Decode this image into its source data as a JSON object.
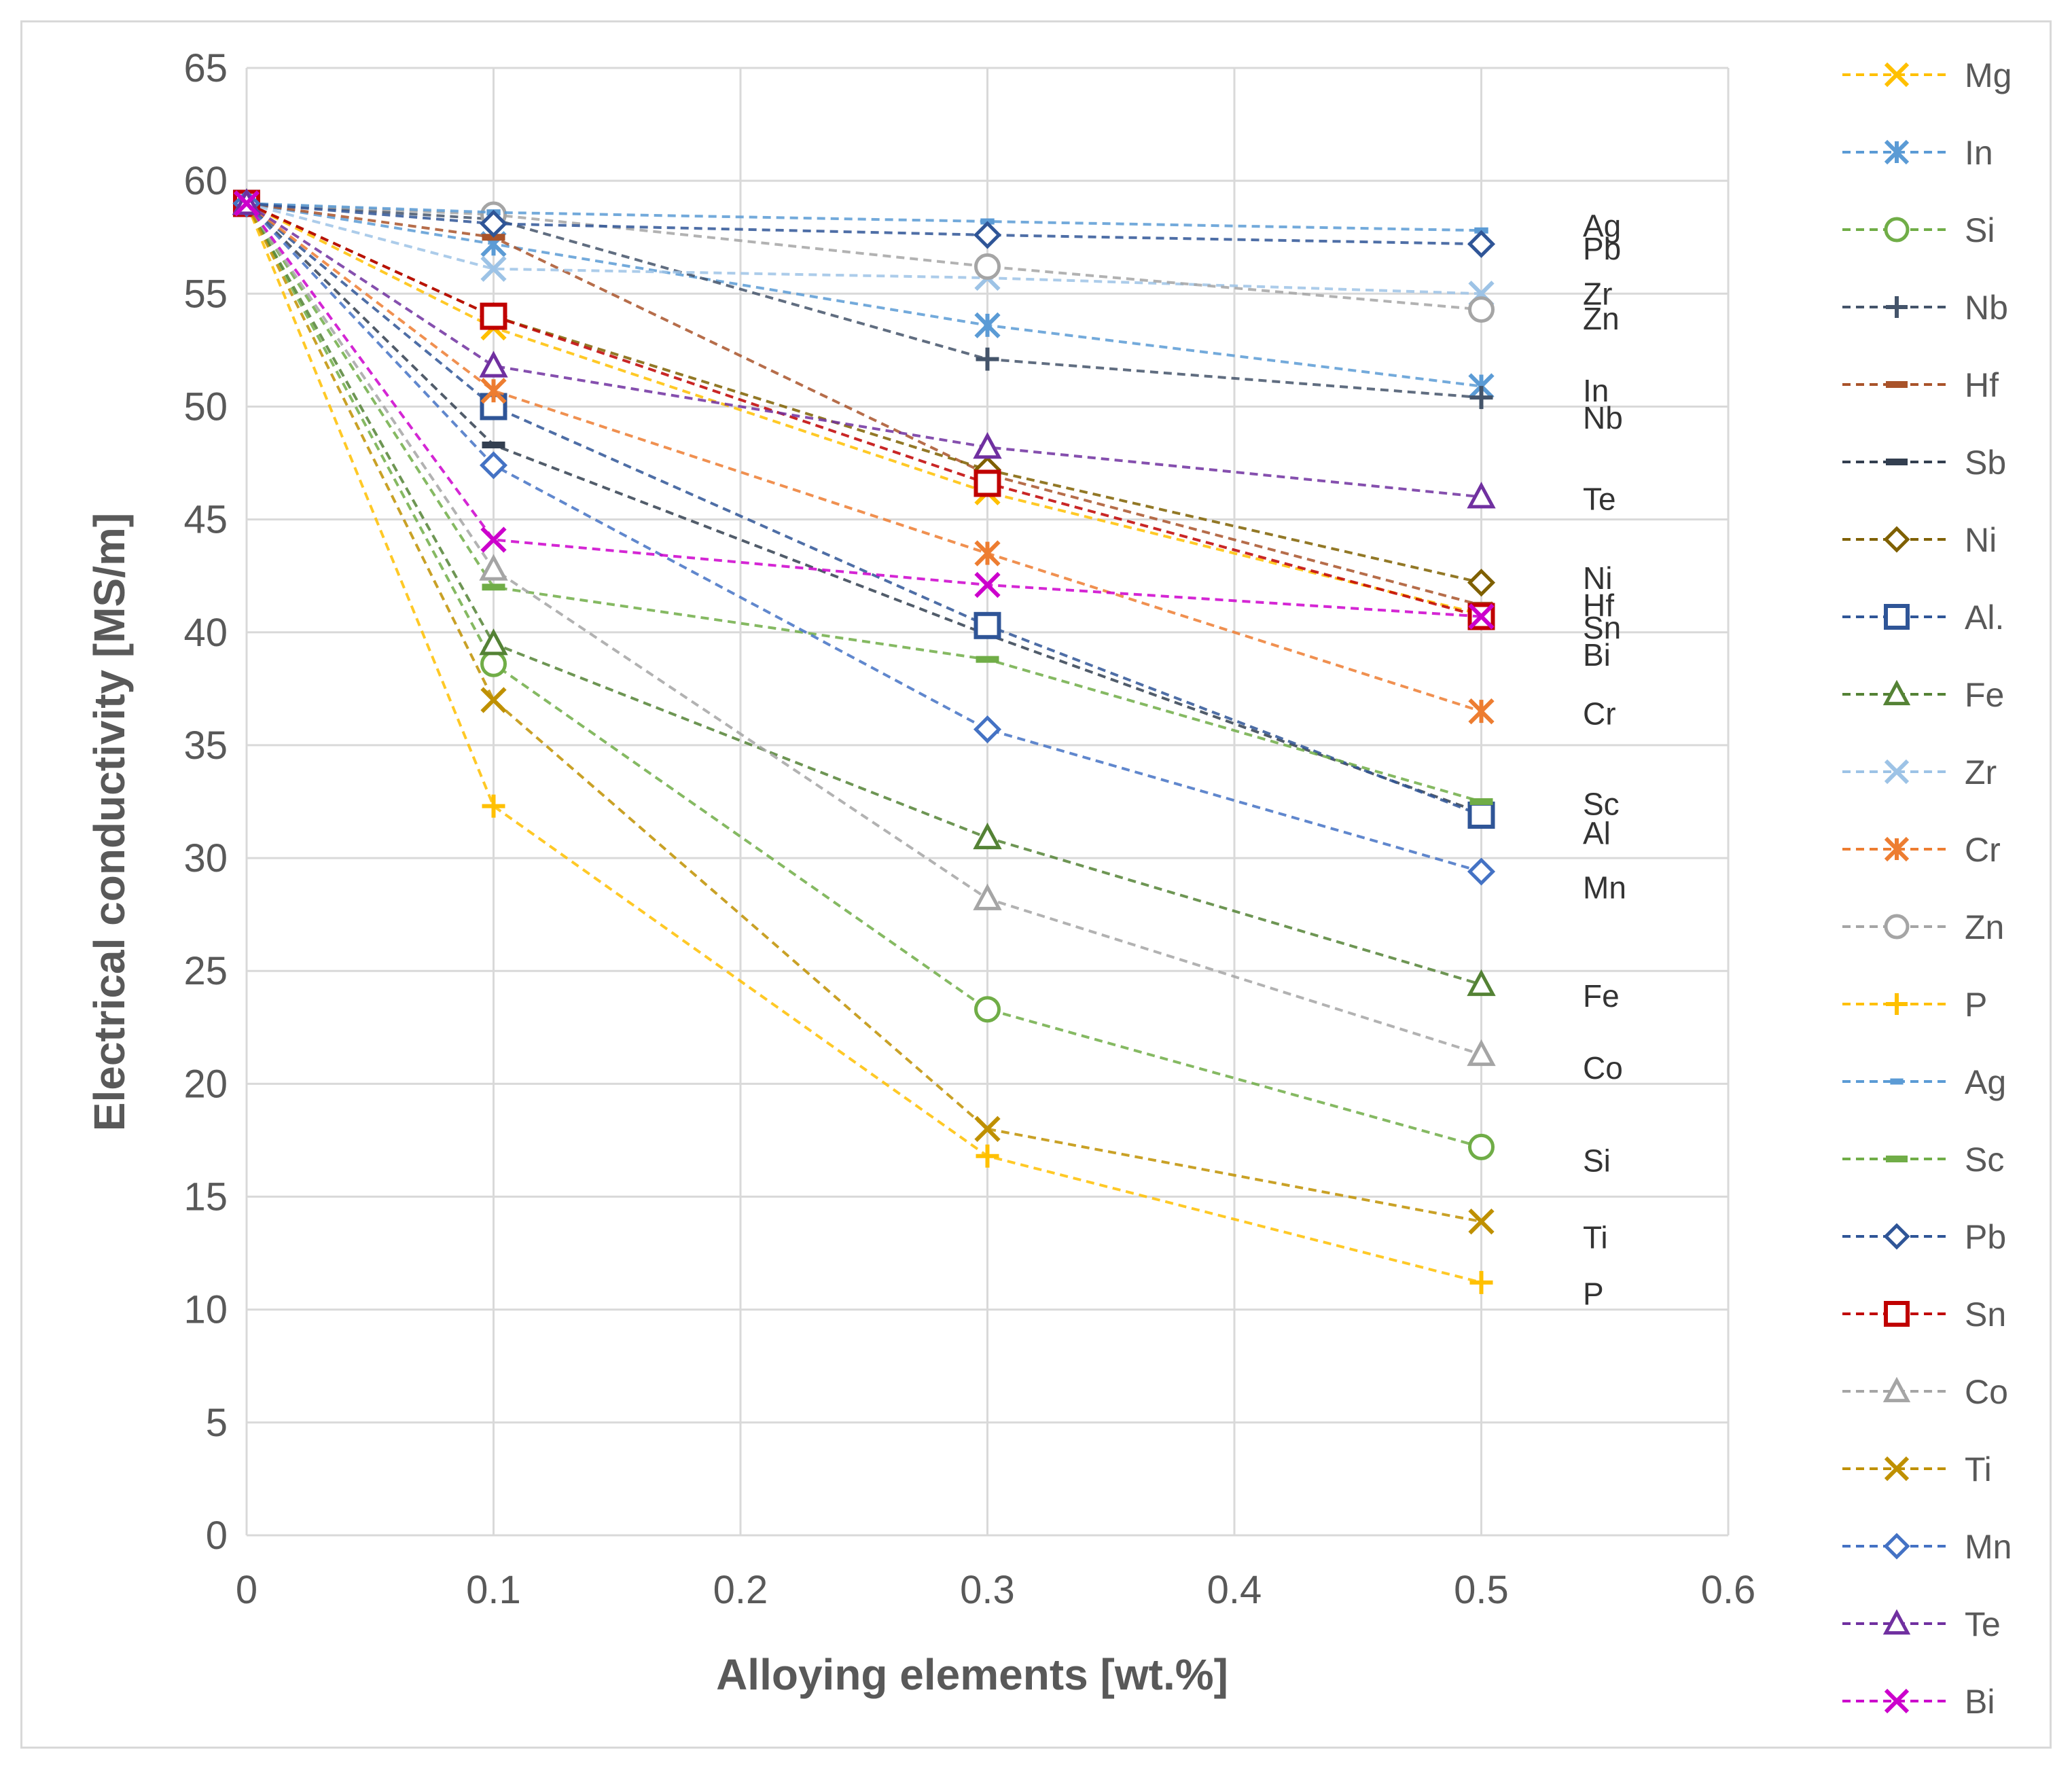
{
  "chart_data": {
    "type": "line",
    "title": "",
    "xlabel": "Alloying elements [wt.%]",
    "ylabel": "Electrical conductivity [MS/m]",
    "xlim": [
      0,
      0.6
    ],
    "ylim": [
      0,
      65
    ],
    "x_ticks": [
      "0",
      "0.1",
      "0.2",
      "0.3",
      "0.4",
      "0.5",
      "0.6"
    ],
    "y_ticks": [
      "0",
      "5",
      "10",
      "15",
      "20",
      "25",
      "30",
      "35",
      "40",
      "45",
      "50",
      "55",
      "60",
      "65"
    ],
    "grid": true,
    "legend_position": "right",
    "series": [
      {
        "name": "Mg",
        "marker": "x",
        "color": "#FFC000",
        "x": [
          0,
          0.1,
          0.3,
          0.5
        ],
        "values": [
          59,
          53.5,
          46.2,
          40.8
        ]
      },
      {
        "name": "In",
        "marker": "asterisk",
        "color": "#5B9BD5",
        "x": [
          0,
          0.1,
          0.3,
          0.5
        ],
        "values": [
          59,
          57.2,
          53.6,
          50.9
        ]
      },
      {
        "name": "Si",
        "marker": "circle",
        "color": "#70AD47",
        "x": [
          0,
          0.1,
          0.3,
          0.5
        ],
        "values": [
          59,
          38.6,
          23.3,
          17.2
        ]
      },
      {
        "name": "Nb",
        "marker": "plus",
        "color": "#44546A",
        "x": [
          0,
          0.1,
          0.3,
          0.5
        ],
        "values": [
          59,
          58.3,
          52.1,
          50.4
        ]
      },
      {
        "name": "Hf",
        "marker": "dash",
        "color": "#A9532A",
        "x": [
          0,
          0.1,
          0.3,
          0.5
        ],
        "values": [
          59,
          57.5,
          47.0,
          41.2
        ]
      },
      {
        "name": "Sb",
        "marker": "dash",
        "color": "#333F50",
        "x": [
          0,
          0.1,
          0.3,
          0.5
        ],
        "values": [
          59,
          48.3,
          39.9,
          32.0
        ]
      },
      {
        "name": "Ni",
        "marker": "diamond",
        "color": "#7F6000",
        "x": [
          0,
          0.1,
          0.3,
          0.5
        ],
        "values": [
          59,
          54.0,
          47.2,
          42.2
        ]
      },
      {
        "name": "Al.",
        "marker": "square",
        "color": "#2F5597",
        "x": [
          0,
          0.1,
          0.3,
          0.5
        ],
        "values": [
          59,
          50.0,
          40.3,
          31.9
        ]
      },
      {
        "name": "Fe",
        "marker": "triangle",
        "color": "#548235",
        "x": [
          0,
          0.1,
          0.3,
          0.5
        ],
        "values": [
          59,
          39.5,
          30.9,
          24.4
        ]
      },
      {
        "name": "Zr",
        "marker": "x",
        "color": "#9DC3E6",
        "x": [
          0,
          0.1,
          0.3,
          0.5
        ],
        "values": [
          59,
          56.1,
          55.7,
          55.0
        ]
      },
      {
        "name": "Cr",
        "marker": "asterisk",
        "color": "#ED7D31",
        "x": [
          0,
          0.1,
          0.3,
          0.5
        ],
        "values": [
          59,
          50.7,
          43.5,
          36.5
        ]
      },
      {
        "name": "Zn",
        "marker": "circle",
        "color": "#A5A5A5",
        "x": [
          0,
          0.1,
          0.3,
          0.5
        ],
        "values": [
          59,
          58.5,
          56.2,
          54.3
        ]
      },
      {
        "name": "P",
        "marker": "plus",
        "color": "#FFC000",
        "x": [
          0,
          0.1,
          0.3,
          0.5
        ],
        "values": [
          59,
          32.3,
          16.8,
          11.2
        ]
      },
      {
        "name": "Ag",
        "marker": "dot",
        "color": "#5B9BD5",
        "x": [
          0,
          0.1,
          0.3,
          0.5
        ],
        "values": [
          59,
          58.6,
          58.2,
          57.8
        ]
      },
      {
        "name": "Sc",
        "marker": "dash",
        "color": "#70AD47",
        "x": [
          0,
          0.1,
          0.3,
          0.5
        ],
        "values": [
          59,
          42.0,
          38.8,
          32.5
        ]
      },
      {
        "name": "Pb",
        "marker": "diamond",
        "color": "#2F5597",
        "x": [
          0,
          0.1,
          0.3,
          0.5
        ],
        "values": [
          59,
          58.1,
          57.6,
          57.2
        ]
      },
      {
        "name": "Sn",
        "marker": "square",
        "color": "#C00000",
        "x": [
          0,
          0.1,
          0.3,
          0.5
        ],
        "values": [
          59,
          54.0,
          46.6,
          40.7
        ]
      },
      {
        "name": "Co",
        "marker": "triangle",
        "color": "#A5A5A5",
        "x": [
          0,
          0.1,
          0.3,
          0.5
        ],
        "values": [
          59,
          42.8,
          28.2,
          21.3
        ]
      },
      {
        "name": "Ti",
        "marker": "x",
        "color": "#BF9000",
        "x": [
          0,
          0.1,
          0.3,
          0.5
        ],
        "values": [
          59,
          37.0,
          18.0,
          13.9
        ]
      },
      {
        "name": "Mn",
        "marker": "diamond",
        "color": "#4472C4",
        "x": [
          0,
          0.1,
          0.3,
          0.5
        ],
        "values": [
          59,
          47.4,
          35.7,
          29.4
        ]
      },
      {
        "name": "Te",
        "marker": "triangle",
        "color": "#7030A0",
        "x": [
          0,
          0.1,
          0.3,
          0.5
        ],
        "values": [
          59,
          51.8,
          48.2,
          46.0
        ]
      },
      {
        "name": "Bi",
        "marker": "x",
        "color": "#CC00CC",
        "x": [
          0,
          0.1,
          0.3,
          0.5
        ],
        "values": [
          59,
          44.1,
          42.1,
          40.7
        ]
      }
    ],
    "annotations": [
      {
        "text": "Ag",
        "y": 58.0
      },
      {
        "text": "Pb",
        "y": 57.0
      },
      {
        "text": "Zr",
        "y": 55.0
      },
      {
        "text": "Zn",
        "y": 53.9
      },
      {
        "text": "In",
        "y": 50.7
      },
      {
        "text": "Nb",
        "y": 49.5
      },
      {
        "text": "Te",
        "y": 45.9
      },
      {
        "text": "Ni",
        "y": 42.4
      },
      {
        "text": "Hf",
        "y": 41.2
      },
      {
        "text": "Sn",
        "y": 40.2
      },
      {
        "text": "Bi",
        "y": 39.0
      },
      {
        "text": "Cr",
        "y": 36.4
      },
      {
        "text": "Sc",
        "y": 32.4
      },
      {
        "text": "Al",
        "y": 31.1
      },
      {
        "text": "Mn",
        "y": 28.7
      },
      {
        "text": "Fe",
        "y": 23.9
      },
      {
        "text": "Co",
        "y": 20.7
      },
      {
        "text": "Si",
        "y": 16.6
      },
      {
        "text": "Ti",
        "y": 13.2
      },
      {
        "text": "P",
        "y": 10.7
      }
    ]
  }
}
